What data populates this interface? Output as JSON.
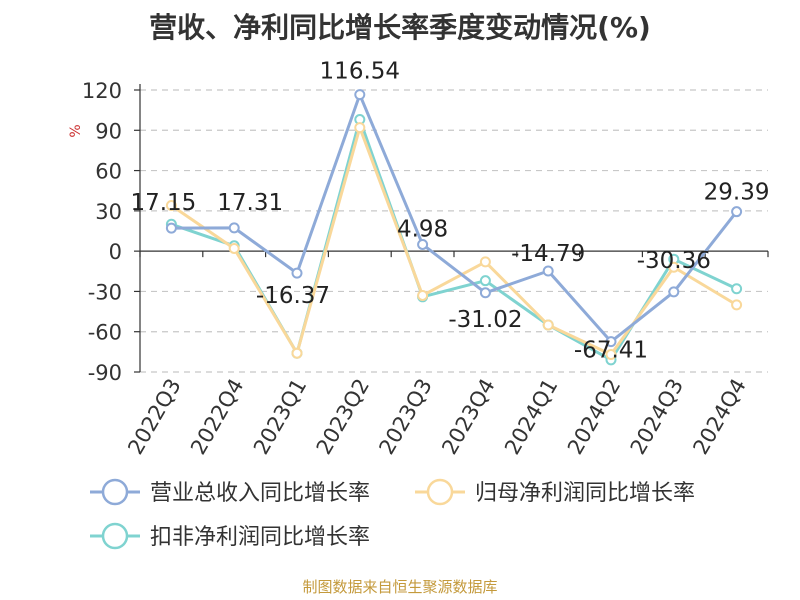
{
  "title": "营收、净利同比增长率季度变动情况(%)",
  "source_text": "制图数据来自恒生聚源数据库",
  "chart_data": {
    "type": "line",
    "title": "营收、净利同比增长率季度变动情况(%)",
    "ylabel": "%",
    "xlabel": "",
    "ylim": [
      -90,
      120
    ],
    "yticks": [
      120,
      90,
      60,
      30,
      0,
      -30,
      -60,
      -90
    ],
    "grid": true,
    "legend_position": "bottom",
    "categories": [
      "2022Q3",
      "2022Q4",
      "2023Q1",
      "2023Q2",
      "2023Q3",
      "2023Q4",
      "2024Q1",
      "2024Q2",
      "2024Q3",
      "2024Q4"
    ],
    "series": [
      {
        "name": "营业总收入同比增长率",
        "color": "#8eaad8",
        "values": [
          17.15,
          17.31,
          -16.37,
          116.54,
          4.98,
          -31.02,
          -14.79,
          -67.41,
          -30.36,
          29.39
        ],
        "labels": [
          "17.15",
          "17.31",
          "-16.37",
          "116.54",
          "4.98",
          "-31.02",
          "-14.79",
          "-67.41",
          "-30.36",
          "29.39"
        ]
      },
      {
        "name": "归母净利润同比增长率",
        "color": "#f9d89a",
        "values": [
          34,
          2,
          -76,
          92,
          -33,
          -8,
          -55,
          -77,
          -12,
          -40
        ]
      },
      {
        "name": "扣非净利润同比增长率",
        "color": "#7fd3d0",
        "values": [
          20,
          4,
          -76,
          98,
          -34,
          -22,
          -55,
          -81,
          -6,
          -28
        ]
      }
    ]
  }
}
